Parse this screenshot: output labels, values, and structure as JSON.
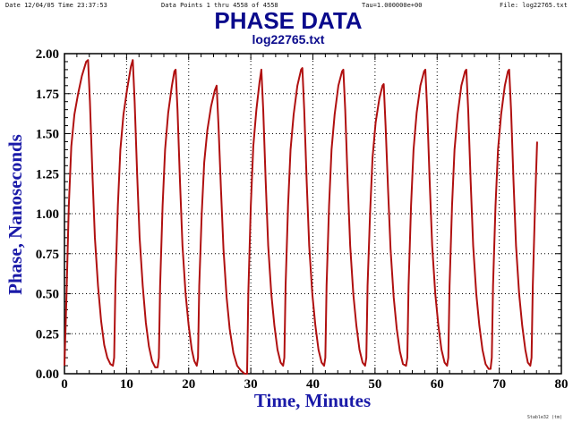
{
  "header": {
    "date": "Date  12/04/05  Time  23:37:53",
    "points": "Data Points 1 thru 4558 of 4558",
    "tau": "Tau=1.000000e+00",
    "file": "File: log22765.txt"
  },
  "credit": "Stable32 (tm)",
  "chart_data": {
    "type": "line",
    "title": "PHASE DATA",
    "subtitle": "log22765.txt",
    "xlabel": "Time,  Minutes",
    "ylabel": "Phase,  Nanoseconds",
    "xlim": [
      0,
      80
    ],
    "ylim": [
      0.0,
      2.0
    ],
    "xticks": [
      "0",
      "10",
      "20",
      "30",
      "40",
      "50",
      "60",
      "70",
      "80"
    ],
    "yticks": [
      "0.00",
      "0.25",
      "0.50",
      "0.75",
      "1.00",
      "1.25",
      "1.50",
      "1.75",
      "2.00"
    ],
    "grid": true,
    "series": [
      {
        "color": "#b01010",
        "points": [
          [
            0.0,
            0.05
          ],
          [
            0.3,
            0.45
          ],
          [
            0.7,
            1.05
          ],
          [
            1.1,
            1.42
          ],
          [
            1.6,
            1.62
          ],
          [
            2.2,
            1.75
          ],
          [
            2.8,
            1.86
          ],
          [
            3.5,
            1.95
          ],
          [
            3.8,
            1.96
          ],
          [
            4.1,
            1.7
          ],
          [
            4.5,
            1.25
          ],
          [
            4.9,
            0.85
          ],
          [
            5.4,
            0.55
          ],
          [
            5.9,
            0.33
          ],
          [
            6.4,
            0.18
          ],
          [
            6.9,
            0.1
          ],
          [
            7.4,
            0.06
          ],
          [
            7.8,
            0.05
          ],
          [
            8.0,
            0.1
          ],
          [
            8.2,
            0.55
          ],
          [
            8.6,
            1.05
          ],
          [
            9.0,
            1.4
          ],
          [
            9.5,
            1.62
          ],
          [
            10.1,
            1.78
          ],
          [
            10.7,
            1.92
          ],
          [
            11.0,
            1.96
          ],
          [
            11.3,
            1.7
          ],
          [
            11.7,
            1.25
          ],
          [
            12.1,
            0.85
          ],
          [
            12.6,
            0.55
          ],
          [
            13.1,
            0.32
          ],
          [
            13.6,
            0.17
          ],
          [
            14.1,
            0.08
          ],
          [
            14.6,
            0.04
          ],
          [
            15.0,
            0.04
          ],
          [
            15.2,
            0.1
          ],
          [
            15.4,
            0.55
          ],
          [
            15.8,
            1.05
          ],
          [
            16.2,
            1.4
          ],
          [
            16.7,
            1.63
          ],
          [
            17.3,
            1.8
          ],
          [
            17.7,
            1.89
          ],
          [
            17.9,
            1.9
          ],
          [
            18.2,
            1.65
          ],
          [
            18.6,
            1.2
          ],
          [
            19.0,
            0.8
          ],
          [
            19.5,
            0.5
          ],
          [
            20.0,
            0.3
          ],
          [
            20.5,
            0.15
          ],
          [
            20.9,
            0.08
          ],
          [
            21.3,
            0.05
          ],
          [
            21.5,
            0.1
          ],
          [
            21.7,
            0.55
          ],
          [
            22.1,
            1.0
          ],
          [
            22.5,
            1.32
          ],
          [
            23.0,
            1.52
          ],
          [
            23.6,
            1.67
          ],
          [
            24.2,
            1.77
          ],
          [
            24.5,
            1.8
          ],
          [
            24.8,
            1.55
          ],
          [
            25.2,
            1.15
          ],
          [
            25.6,
            0.78
          ],
          [
            26.1,
            0.48
          ],
          [
            26.6,
            0.28
          ],
          [
            27.2,
            0.13
          ],
          [
            27.8,
            0.05
          ],
          [
            28.4,
            0.02
          ],
          [
            29.0,
            0.0
          ],
          [
            29.4,
            0.0
          ],
          [
            29.6,
            0.5
          ],
          [
            30.0,
            1.05
          ],
          [
            30.4,
            1.42
          ],
          [
            30.9,
            1.65
          ],
          [
            31.4,
            1.82
          ],
          [
            31.7,
            1.9
          ],
          [
            32.0,
            1.65
          ],
          [
            32.4,
            1.2
          ],
          [
            32.8,
            0.8
          ],
          [
            33.3,
            0.5
          ],
          [
            33.8,
            0.3
          ],
          [
            34.3,
            0.15
          ],
          [
            34.8,
            0.07
          ],
          [
            35.2,
            0.05
          ],
          [
            35.4,
            0.1
          ],
          [
            35.6,
            0.55
          ],
          [
            36.0,
            1.05
          ],
          [
            36.4,
            1.4
          ],
          [
            36.9,
            1.62
          ],
          [
            37.5,
            1.8
          ],
          [
            38.1,
            1.9
          ],
          [
            38.3,
            1.91
          ],
          [
            38.6,
            1.65
          ],
          [
            39.0,
            1.2
          ],
          [
            39.4,
            0.8
          ],
          [
            39.9,
            0.5
          ],
          [
            40.4,
            0.3
          ],
          [
            40.9,
            0.15
          ],
          [
            41.4,
            0.07
          ],
          [
            41.8,
            0.05
          ],
          [
            42.0,
            0.1
          ],
          [
            42.2,
            0.55
          ],
          [
            42.6,
            1.05
          ],
          [
            43.0,
            1.4
          ],
          [
            43.5,
            1.62
          ],
          [
            44.1,
            1.8
          ],
          [
            44.7,
            1.89
          ],
          [
            44.9,
            1.9
          ],
          [
            45.2,
            1.65
          ],
          [
            45.6,
            1.2
          ],
          [
            46.0,
            0.8
          ],
          [
            46.5,
            0.5
          ],
          [
            47.0,
            0.3
          ],
          [
            47.5,
            0.15
          ],
          [
            48.0,
            0.07
          ],
          [
            48.4,
            0.05
          ],
          [
            48.6,
            0.1
          ],
          [
            48.8,
            0.55
          ],
          [
            49.2,
            1.0
          ],
          [
            49.6,
            1.35
          ],
          [
            50.1,
            1.57
          ],
          [
            50.7,
            1.72
          ],
          [
            51.2,
            1.8
          ],
          [
            51.4,
            1.81
          ],
          [
            51.7,
            1.55
          ],
          [
            52.1,
            1.15
          ],
          [
            52.5,
            0.78
          ],
          [
            53.0,
            0.48
          ],
          [
            53.5,
            0.28
          ],
          [
            54.0,
            0.14
          ],
          [
            54.5,
            0.06
          ],
          [
            55.0,
            0.05
          ],
          [
            55.2,
            0.1
          ],
          [
            55.4,
            0.55
          ],
          [
            55.8,
            1.05
          ],
          [
            56.2,
            1.4
          ],
          [
            56.7,
            1.63
          ],
          [
            57.3,
            1.8
          ],
          [
            57.9,
            1.89
          ],
          [
            58.1,
            1.9
          ],
          [
            58.4,
            1.65
          ],
          [
            58.8,
            1.2
          ],
          [
            59.2,
            0.8
          ],
          [
            59.7,
            0.5
          ],
          [
            60.2,
            0.3
          ],
          [
            60.7,
            0.15
          ],
          [
            61.2,
            0.07
          ],
          [
            61.6,
            0.05
          ],
          [
            61.8,
            0.1
          ],
          [
            62.0,
            0.55
          ],
          [
            62.4,
            1.05
          ],
          [
            62.8,
            1.4
          ],
          [
            63.3,
            1.62
          ],
          [
            63.9,
            1.8
          ],
          [
            64.5,
            1.89
          ],
          [
            64.7,
            1.9
          ],
          [
            65.0,
            1.65
          ],
          [
            65.4,
            1.2
          ],
          [
            65.8,
            0.8
          ],
          [
            66.3,
            0.5
          ],
          [
            66.8,
            0.3
          ],
          [
            67.3,
            0.15
          ],
          [
            67.8,
            0.06
          ],
          [
            68.3,
            0.03
          ],
          [
            68.6,
            0.03
          ],
          [
            68.8,
            0.1
          ],
          [
            69.0,
            0.55
          ],
          [
            69.4,
            1.05
          ],
          [
            69.8,
            1.4
          ],
          [
            70.3,
            1.62
          ],
          [
            70.9,
            1.8
          ],
          [
            71.4,
            1.89
          ],
          [
            71.6,
            1.9
          ],
          [
            71.9,
            1.65
          ],
          [
            72.3,
            1.2
          ],
          [
            72.7,
            0.8
          ],
          [
            73.2,
            0.5
          ],
          [
            73.7,
            0.3
          ],
          [
            74.2,
            0.15
          ],
          [
            74.6,
            0.07
          ],
          [
            75.0,
            0.05
          ],
          [
            75.2,
            0.1
          ],
          [
            75.4,
            0.55
          ],
          [
            75.8,
            1.1
          ],
          [
            76.1,
            1.45
          ]
        ]
      }
    ]
  }
}
